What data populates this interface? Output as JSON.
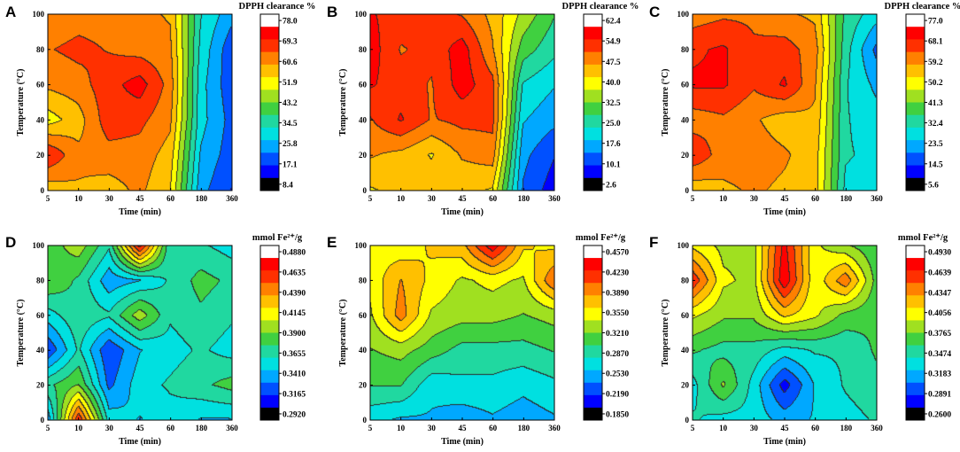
{
  "figure": {
    "type": "contour-panels",
    "panel_count": 6
  },
  "palette": {
    "colormap": [
      "#0000ff",
      "#0050ff",
      "#00a8ff",
      "#00e0e0",
      "#20d8a0",
      "#40d040",
      "#a0e020",
      "#ffff00",
      "#ffc000",
      "#ff8000",
      "#ff3000",
      "#ff0000"
    ],
    "colorbar_low_end": "#000000",
    "colorbar_high_end": "#ffffff",
    "contour_line": "#333333"
  },
  "chart_data": [
    {
      "panel": "A",
      "type": "contour",
      "xlabel": "Time (min)",
      "ylabel": "Temperature (°C)",
      "x_ticks": [
        "5",
        "10",
        "30",
        "45",
        "60",
        "180",
        "360"
      ],
      "y_ticks": [
        "0",
        "20",
        "40",
        "60",
        "80",
        "100"
      ],
      "colorbar_title": "DPPH clearance %",
      "colorbar_ticks": [
        "78.0",
        "69.3",
        "60.6",
        "51.9",
        "43.2",
        "34.5",
        "25.8",
        "17.1",
        "8.4"
      ],
      "zlim": [
        8.4,
        78.0
      ],
      "y": [
        0,
        20,
        40,
        60,
        80,
        100
      ],
      "z": [
        [
          57,
          60,
          58,
          62,
          55,
          22,
          14
        ],
        [
          72,
          62,
          64,
          64,
          58,
          25,
          17
        ],
        [
          52,
          58,
          70,
          68,
          62,
          28,
          18
        ],
        [
          62,
          64,
          70,
          75,
          64,
          28,
          16
        ],
        [
          66,
          68,
          66,
          64,
          62,
          30,
          16
        ],
        [
          62,
          64,
          64,
          62,
          60,
          32,
          22
        ]
      ]
    },
    {
      "panel": "B",
      "type": "contour",
      "xlabel": "Time (min)",
      "ylabel": "Temperature (°C)",
      "x_ticks": [
        "5",
        "10",
        "30",
        "45",
        "60",
        "180",
        "360"
      ],
      "y_ticks": [
        "0",
        "20",
        "40",
        "60",
        "80",
        "100"
      ],
      "colorbar_title": "DPPH clearance %",
      "colorbar_ticks": [
        "62.4",
        "54.9",
        "47.5",
        "40.0",
        "32.5",
        "25.0",
        "17.6",
        "10.1",
        "2.6"
      ],
      "zlim": [
        2.6,
        62.4
      ],
      "y": [
        0,
        20,
        40,
        60,
        80,
        100
      ],
      "z": [
        [
          42,
          44,
          46,
          44,
          42,
          12,
          5
        ],
        [
          48,
          46,
          42,
          48,
          50,
          14,
          8
        ],
        [
          52,
          58,
          52,
          54,
          54,
          18,
          14
        ],
        [
          58,
          55,
          52,
          60,
          54,
          22,
          18
        ],
        [
          60,
          52,
          54,
          60,
          48,
          30,
          24
        ],
        [
          58,
          55,
          55,
          52,
          46,
          36,
          28
        ]
      ]
    },
    {
      "panel": "C",
      "type": "contour",
      "xlabel": "Time (min)",
      "ylabel": "Temperature (°C)",
      "x_ticks": [
        "5",
        "10",
        "30",
        "45",
        "60",
        "180",
        "360"
      ],
      "y_ticks": [
        "0",
        "20",
        "40",
        "60",
        "80",
        "100"
      ],
      "colorbar_title": "DPPH clearance %",
      "colorbar_ticks": [
        "77.0",
        "68.1",
        "59.2",
        "50.2",
        "41.3",
        "32.4",
        "23.5",
        "14.5",
        "5.6"
      ],
      "zlim": [
        5.6,
        77.0
      ],
      "y": [
        0,
        20,
        40,
        60,
        80,
        100
      ],
      "z": [
        [
          55,
          58,
          60,
          58,
          56,
          28,
          26
        ],
        [
          70,
          62,
          62,
          60,
          56,
          30,
          28
        ],
        [
          62,
          64,
          60,
          56,
          58,
          30,
          26
        ],
        [
          72,
          72,
          66,
          72,
          60,
          30,
          22
        ],
        [
          70,
          72,
          66,
          68,
          62,
          32,
          16
        ],
        [
          62,
          64,
          64,
          60,
          58,
          34,
          26
        ]
      ]
    },
    {
      "panel": "D",
      "type": "contour",
      "xlabel": "Time (min)",
      "ylabel": "Temperature (°C)",
      "x_ticks": [
        "5",
        "10",
        "30",
        "45",
        "60",
        "180",
        "360"
      ],
      "y_ticks": [
        "0",
        "20",
        "40",
        "60",
        "80",
        "100"
      ],
      "colorbar_title": "mmol Fe²⁺/g",
      "colorbar_ticks": [
        "0.4880",
        "0.4635",
        "0.4390",
        "0.4145",
        "0.3900",
        "0.3655",
        "0.3410",
        "0.3165",
        "0.2920"
      ],
      "zlim": [
        0.292,
        0.488
      ],
      "y": [
        0,
        20,
        40,
        60,
        80,
        100
      ],
      "z": [
        [
          0.33,
          0.47,
          0.35,
          0.34,
          0.35,
          0.34,
          0.34
        ],
        [
          0.37,
          0.39,
          0.32,
          0.35,
          0.36,
          0.37,
          0.38
        ],
        [
          0.31,
          0.36,
          0.31,
          0.34,
          0.35,
          0.36,
          0.35
        ],
        [
          0.35,
          0.37,
          0.36,
          0.4,
          0.36,
          0.37,
          0.36
        ],
        [
          0.39,
          0.37,
          0.33,
          0.34,
          0.36,
          0.38,
          0.37
        ],
        [
          0.38,
          0.4,
          0.36,
          0.48,
          0.36,
          0.36,
          0.35
        ]
      ]
    },
    {
      "panel": "E",
      "type": "contour",
      "xlabel": "Time (min)",
      "ylabel": "Temperature (°C)",
      "x_ticks": [
        "5",
        "10",
        "30",
        "45",
        "60",
        "180",
        "360"
      ],
      "y_ticks": [
        "0",
        "20",
        "40",
        "60",
        "80",
        "100"
      ],
      "colorbar_title": "mmol Fe²⁺/g",
      "colorbar_ticks": [
        "0.4570",
        "0.4230",
        "0.3890",
        "0.3550",
        "0.3210",
        "0.2870",
        "0.2530",
        "0.2190",
        "0.1850"
      ],
      "zlim": [
        0.185,
        0.457
      ],
      "y": [
        0,
        20,
        40,
        60,
        80,
        100
      ],
      "z": [
        [
          0.26,
          0.25,
          0.25,
          0.24,
          0.25,
          0.24,
          0.25
        ],
        [
          0.3,
          0.3,
          0.26,
          0.27,
          0.27,
          0.26,
          0.27
        ],
        [
          0.32,
          0.33,
          0.31,
          0.29,
          0.29,
          0.29,
          0.3
        ],
        [
          0.34,
          0.4,
          0.34,
          0.33,
          0.33,
          0.32,
          0.33
        ],
        [
          0.35,
          0.39,
          0.36,
          0.34,
          0.35,
          0.34,
          0.41
        ],
        [
          0.36,
          0.35,
          0.37,
          0.38,
          0.45,
          0.37,
          0.36
        ]
      ]
    },
    {
      "panel": "F",
      "type": "contour",
      "xlabel": "Time (min)",
      "ylabel": "Temperature (°C)",
      "x_ticks": [
        "5",
        "10",
        "30",
        "45",
        "60",
        "180",
        "360"
      ],
      "y_ticks": [
        "0",
        "20",
        "40",
        "60",
        "80",
        "100"
      ],
      "colorbar_title": "mmol Fe²⁺/g",
      "colorbar_ticks": [
        "0.4930",
        "0.4639",
        "0.4347",
        "0.4056",
        "0.3765",
        "0.3474",
        "0.3183",
        "0.2891",
        "0.2600"
      ],
      "zlim": [
        0.26,
        0.493
      ],
      "y": [
        0,
        20,
        40,
        60,
        80,
        100
      ],
      "z": [
        [
          0.34,
          0.33,
          0.33,
          0.31,
          0.32,
          0.33,
          0.34
        ],
        [
          0.33,
          0.38,
          0.33,
          0.27,
          0.32,
          0.34,
          0.35
        ],
        [
          0.36,
          0.35,
          0.35,
          0.33,
          0.34,
          0.34,
          0.36
        ],
        [
          0.4,
          0.38,
          0.38,
          0.42,
          0.4,
          0.37,
          0.36
        ],
        [
          0.47,
          0.4,
          0.39,
          0.49,
          0.4,
          0.45,
          0.37
        ],
        [
          0.41,
          0.39,
          0.39,
          0.48,
          0.4,
          0.38,
          0.36
        ]
      ]
    }
  ]
}
